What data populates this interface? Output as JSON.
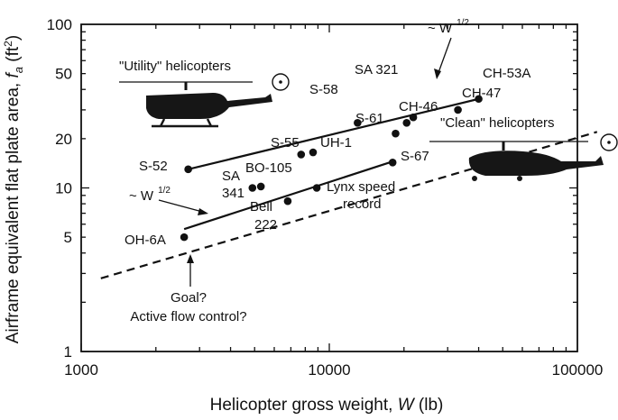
{
  "chart_data": {
    "type": "scatter",
    "xlabel_prefix": "Helicopter gross weight, ",
    "xlabel_var": "W",
    "xlabel_unit": " (lb)",
    "ylabel_prefix": "Airframe equivalent flat plate area, ",
    "ylabel_var": "f",
    "ylabel_sub": "a",
    "ylabel_unit_pre": " (ft",
    "ylabel_unit_exp": "2",
    "ylabel_unit_post": ")",
    "x_scale": "log",
    "y_scale": "log",
    "xlim": [
      1000,
      100000
    ],
    "ylim": [
      1,
      100
    ],
    "x_ticks": [
      {
        "value": 1000,
        "label": "1000"
      },
      {
        "value": 10000,
        "label": "10000"
      },
      {
        "value": 100000,
        "label": "100000"
      }
    ],
    "y_ticks": [
      {
        "value": 1,
        "label": "1"
      },
      {
        "value": 5,
        "label": "5"
      },
      {
        "value": 10,
        "label": "10"
      },
      {
        "value": 20,
        "label": "20"
      },
      {
        "value": 50,
        "label": "50"
      },
      {
        "value": 100,
        "label": "100"
      }
    ],
    "grid": false,
    "points": [
      {
        "label": "OH-6A",
        "x": 2600,
        "y": 5.0
      },
      {
        "label": "S-52",
        "x": 2700,
        "y": 13.0
      },
      {
        "label": "SA 341",
        "x": 4900,
        "y": 10.0
      },
      {
        "label": "BO-105",
        "x": 5300,
        "y": 10.2
      },
      {
        "label": "Bell 222",
        "x": 6800,
        "y": 8.3
      },
      {
        "label": "S-55",
        "x": 7700,
        "y": 16.0
      },
      {
        "label": "UH-1",
        "x": 8600,
        "y": 16.5
      },
      {
        "label": "Lynx speed record",
        "x": 8900,
        "y": 10.0
      },
      {
        "label": "S-58",
        "x": 13000,
        "y": 25.0
      },
      {
        "label": "S-67",
        "x": 18000,
        "y": 14.3
      },
      {
        "label": "S-61",
        "x": 18500,
        "y": 21.5
      },
      {
        "label": "CH-46",
        "x": 20500,
        "y": 25.0
      },
      {
        "label": "SA 321",
        "x": 21800,
        "y": 27.0
      },
      {
        "label": "CH-47",
        "x": 33000,
        "y": 30.0
      },
      {
        "label": "CH-53A",
        "x": 40000,
        "y": 35.0
      }
    ],
    "lines": [
      {
        "name": "utility",
        "style": "solid",
        "x": [
          2700,
          40000
        ],
        "y": [
          13.0,
          35.0
        ]
      },
      {
        "name": "clean",
        "style": "solid",
        "x": [
          2600,
          18000
        ],
        "y": [
          5.6,
          14.5
        ]
      },
      {
        "name": "goal",
        "style": "dashed",
        "x": [
          1200,
          120000
        ],
        "y": [
          2.8,
          22.0
        ]
      }
    ],
    "annotations": {
      "utility_label": "\"Utility\" helicopters",
      "clean_label": "\"Clean\" helicopters",
      "trend_upper": "~ W",
      "trend_upper_exp": "1/2",
      "trend_lower": "~ W",
      "trend_lower_exp": "1/2",
      "goal_line1": "Goal?",
      "goal_line2": "Active flow control?"
    },
    "point_labels": {
      "oh6a": "OH-6A",
      "s52": "S-52",
      "sa341_a": "SA",
      "sa341_b": "341",
      "bo105": "BO-105",
      "bell_a": "Bell",
      "bell_b": "222",
      "s55": "S-55",
      "uh1": "UH-1",
      "lynx_a": "Lynx speed",
      "lynx_b": "record",
      "s58": "S-58",
      "sa321": "SA 321",
      "s61": "S-61",
      "ch46": "CH-46",
      "ch47": "CH-47",
      "ch53a": "CH-53A",
      "s67": "S-67"
    }
  }
}
